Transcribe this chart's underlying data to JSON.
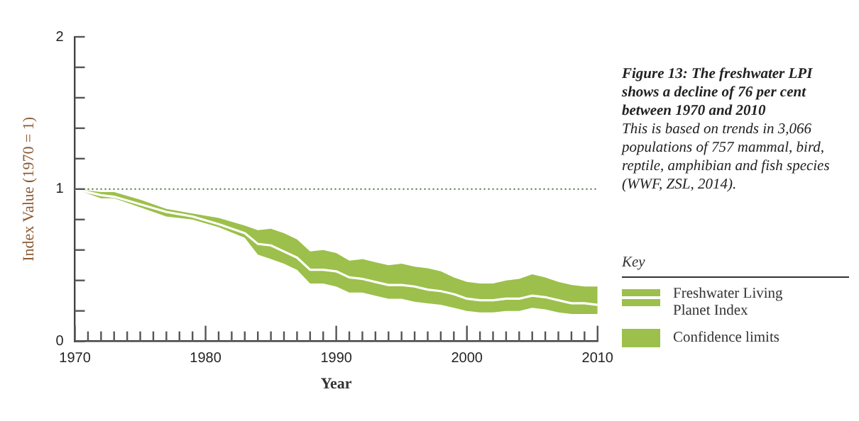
{
  "chart_data": {
    "type": "line",
    "title": "Figure 13: The freshwater LPI shows a decline of 76 per cent between 1970 and 2010",
    "subtitle": "This is based on trends in 3,066 populations of 757 mammal, bird, reptile, amphibian and fish species (WWF, ZSL, 2014).",
    "xlabel": "Year",
    "ylabel": "Index Value (1970 = 1)",
    "legend_title": "Key",
    "legend": "right",
    "annotations": [
      "Confidence limits"
    ],
    "x": [
      1970,
      1972,
      1973,
      1975,
      1977,
      1979,
      1981,
      1983,
      1984,
      1985,
      1986,
      1987,
      1988,
      1989,
      1990,
      1991,
      1992,
      1993,
      1994,
      1995,
      1996,
      1997,
      1998,
      1999,
      2000,
      2001,
      2002,
      2003,
      2004,
      2005,
      2006,
      2007,
      2008,
      2009,
      2010
    ],
    "series": [
      {
        "name": "Freshwater Living Planet Index",
        "color": "#ffffff",
        "values": [
          1.0,
          0.96,
          0.95,
          0.9,
          0.85,
          0.82,
          0.77,
          0.71,
          0.64,
          0.63,
          0.59,
          0.55,
          0.47,
          0.47,
          0.46,
          0.42,
          0.41,
          0.39,
          0.37,
          0.37,
          0.36,
          0.34,
          0.33,
          0.31,
          0.28,
          0.27,
          0.27,
          0.28,
          0.28,
          0.3,
          0.29,
          0.27,
          0.25,
          0.25,
          0.24
        ],
        "upper": [
          1.0,
          0.98,
          0.98,
          0.93,
          0.87,
          0.84,
          0.81,
          0.76,
          0.73,
          0.74,
          0.71,
          0.67,
          0.59,
          0.6,
          0.58,
          0.53,
          0.54,
          0.52,
          0.5,
          0.51,
          0.49,
          0.48,
          0.46,
          0.42,
          0.39,
          0.38,
          0.38,
          0.4,
          0.41,
          0.44,
          0.42,
          0.39,
          0.37,
          0.36,
          0.36
        ],
        "lower": [
          1.0,
          0.94,
          0.94,
          0.88,
          0.82,
          0.8,
          0.75,
          0.68,
          0.57,
          0.54,
          0.51,
          0.47,
          0.38,
          0.38,
          0.36,
          0.32,
          0.32,
          0.3,
          0.28,
          0.28,
          0.26,
          0.25,
          0.24,
          0.22,
          0.2,
          0.19,
          0.19,
          0.2,
          0.2,
          0.22,
          0.21,
          0.19,
          0.18,
          0.18,
          0.18
        ]
      }
    ],
    "xlim": [
      1970,
      2010
    ],
    "xticks": [
      1970,
      {
        "value": 1971,
        "label": null
      },
      {
        "value": 1972,
        "label": null
      },
      {
        "value": 1973,
        "label": null
      },
      {
        "value": 1974,
        "label": null
      },
      {
        "value": 1975,
        "label": null
      },
      {
        "value": 1976,
        "label": null
      },
      {
        "value": 1977,
        "label": null
      },
      {
        "value": 1978,
        "label": null
      },
      {
        "value": 1979,
        "label": null
      },
      1980,
      {
        "value": 1981,
        "label": null
      },
      {
        "value": 1982,
        "label": null
      },
      {
        "value": 1983,
        "label": null
      },
      {
        "value": 1984,
        "label": null
      },
      {
        "value": 1985,
        "label": null
      },
      {
        "value": 1986,
        "label": null
      },
      {
        "value": 1987,
        "label": null
      },
      {
        "value": 1988,
        "label": null
      },
      {
        "value": 1989,
        "label": null
      },
      1990,
      {
        "value": 1991,
        "label": null
      },
      {
        "value": 1992,
        "label": null
      },
      {
        "value": 1993,
        "label": null
      },
      {
        "value": 1994,
        "label": null
      },
      {
        "value": 1995,
        "label": null
      },
      {
        "value": 1996,
        "label": null
      },
      {
        "value": 1997,
        "label": null
      },
      {
        "value": 1998,
        "label": null
      },
      {
        "value": 1999,
        "label": null
      },
      2000,
      {
        "value": 2001,
        "label": null
      },
      {
        "value": 2002,
        "label": null
      },
      {
        "value": 2003,
        "label": null
      },
      {
        "value": 2004,
        "label": null
      },
      {
        "value": 2005,
        "label": null
      },
      {
        "value": 2006,
        "label": null
      },
      {
        "value": 2007,
        "label": null
      },
      {
        "value": 2008,
        "label": null
      },
      {
        "value": 2009,
        "label": null
      },
      2010
    ],
    "ylim": [
      0,
      2
    ],
    "yticks": [
      0,
      {
        "value": 0.2,
        "label": null
      },
      {
        "value": 0.4,
        "label": null
      },
      {
        "value": 0.6,
        "label": null
      },
      {
        "value": 0.8,
        "label": null
      },
      1,
      {
        "value": 1.2,
        "label": null
      },
      {
        "value": 1.4,
        "label": null
      },
      {
        "value": 1.6,
        "label": null
      },
      {
        "value": 1.8,
        "label": null
      },
      2
    ],
    "ref_lines": [
      {
        "axis": "y",
        "value": 1,
        "color": "#3d7a2e",
        "line_style": "dotted"
      }
    ],
    "grid": false,
    "marker": "none"
  }
}
